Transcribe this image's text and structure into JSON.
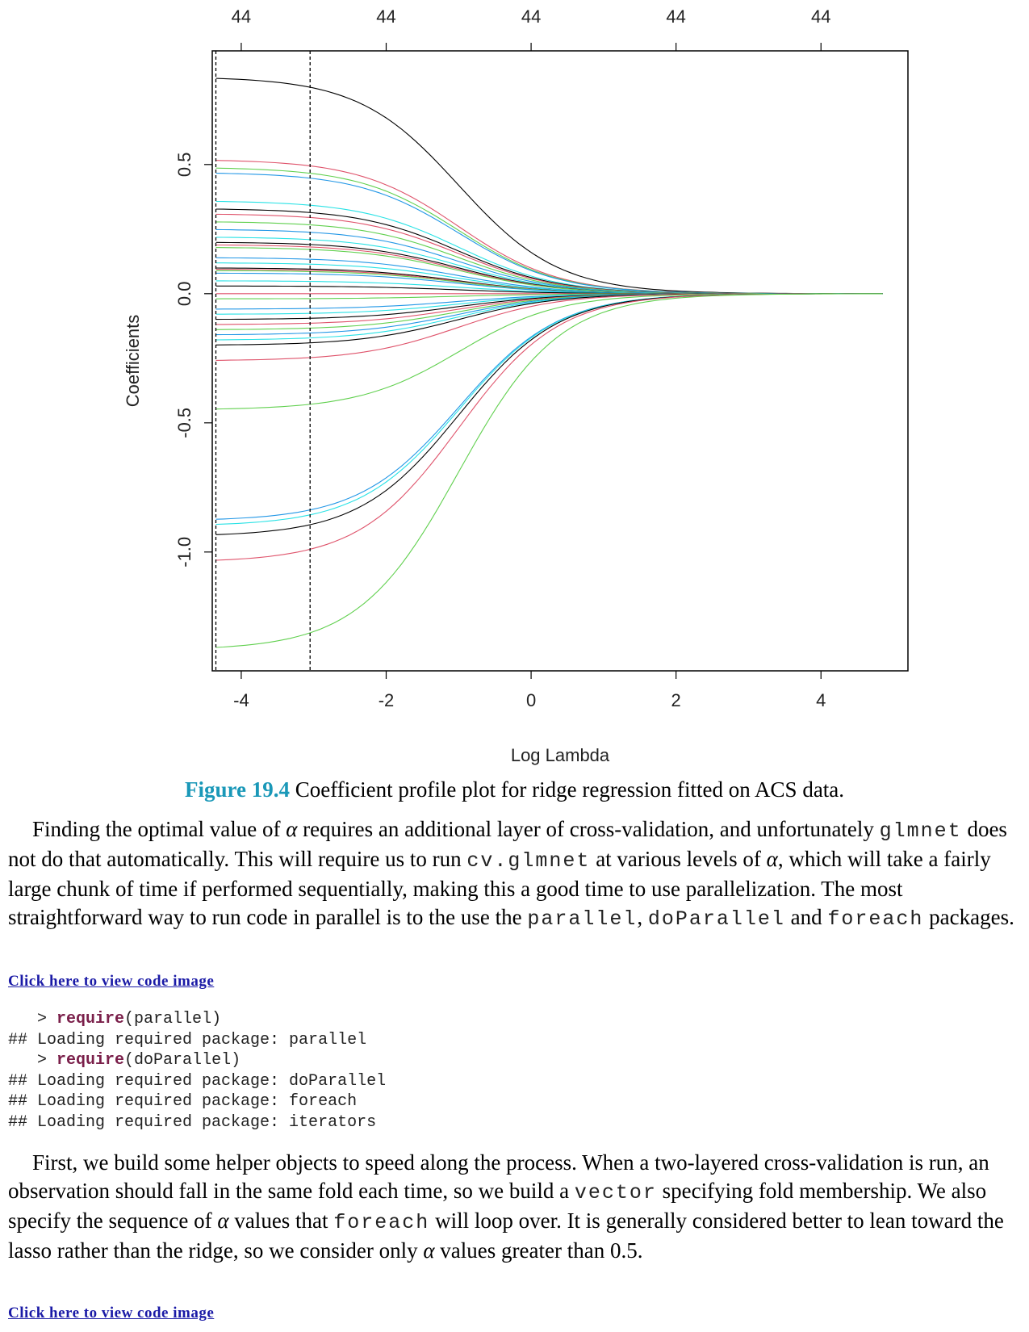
{
  "chart_data": {
    "type": "line",
    "xlabel": "Log Lambda",
    "ylabel": "Coefficients",
    "xlim": [
      -4.4,
      5.2
    ],
    "ylim": [
      -1.46,
      0.94
    ],
    "x_ticks": [
      "-4",
      "-2",
      "0",
      "2",
      "4"
    ],
    "x_tick_values": [
      -4,
      -2,
      0,
      2,
      4
    ],
    "y_ticks": [
      "-1.0",
      "-0.5",
      "0.0",
      "0.5"
    ],
    "y_tick_values": [
      -1.0,
      -0.5,
      0.0,
      0.5
    ],
    "top_ticks": [
      "44",
      "44",
      "44",
      "44",
      "44"
    ],
    "vlines": [
      -4.35,
      -3.05
    ],
    "x_start": -4.35,
    "x_end": 4.85,
    "series_colors": [
      "#000000",
      "#df536b",
      "#61d04f",
      "#2297e6",
      "#28e2e5"
    ],
    "series_start_values": [
      0.84,
      0.52,
      0.49,
      0.47,
      0.36,
      0.33,
      0.31,
      0.28,
      0.25,
      0.22,
      0.2,
      0.19,
      0.18,
      0.14,
      0.12,
      0.1,
      0.095,
      0.09,
      0.08,
      0.05,
      0.03,
      0.0,
      -0.02,
      -0.06,
      -0.08,
      -0.1,
      -0.12,
      -0.14,
      -0.16,
      -0.18,
      -0.2,
      -0.26,
      -0.45,
      -0.88,
      -0.9,
      -0.94,
      -1.04,
      -1.38
    ]
  },
  "caption": {
    "label": "Figure 19.4",
    "text": " Coefficient profile plot for ridge regression fitted on ACS data."
  },
  "para1": {
    "t1": "Finding the optimal value of ",
    "alpha": "α",
    "t2": " requires an additional layer of cross-validation, and unfortunately ",
    "c1": "glmnet",
    "t3": " does not do that automatically. This will require us to run ",
    "c2": "cv.glmnet",
    "t4": " at various levels of ",
    "t5": ", which will take a fairly large chunk of time if performed sequentially, making this a good time to use parallelization. The most straightforward way to run code in parallel is to the use the ",
    "c3": "parallel",
    "t6": ", ",
    "c4": "doParallel",
    "t7": " and ",
    "c5": "foreach",
    "t8": " packages."
  },
  "link1": "Click here to view code image",
  "code1": {
    "l1_prompt": "> ",
    "l1_kw": "require",
    "l1_rest": "(parallel)",
    "l2": "## Loading required package: parallel",
    "l3_prompt": "> ",
    "l3_kw": "require",
    "l3_rest": "(doParallel)",
    "l4": "## Loading required package: doParallel",
    "l5": "## Loading required package: foreach",
    "l6": "## Loading required package: iterators"
  },
  "para2": {
    "t1": "First, we build some helper objects to speed along the process. When a two-layered cross-validation is run, an observation should fall in the same fold each time, so we build a ",
    "c1": "vector",
    "t2": " specifying fold membership. We also specify the sequence of ",
    "alpha": "α",
    "t3": " values that ",
    "c2": "foreach",
    "t4": " will loop over. It is generally considered better to lean toward the lasso rather than the ridge, so we consider only ",
    "t5": " values greater than 0.5."
  },
  "link2": "Click here to view code image"
}
